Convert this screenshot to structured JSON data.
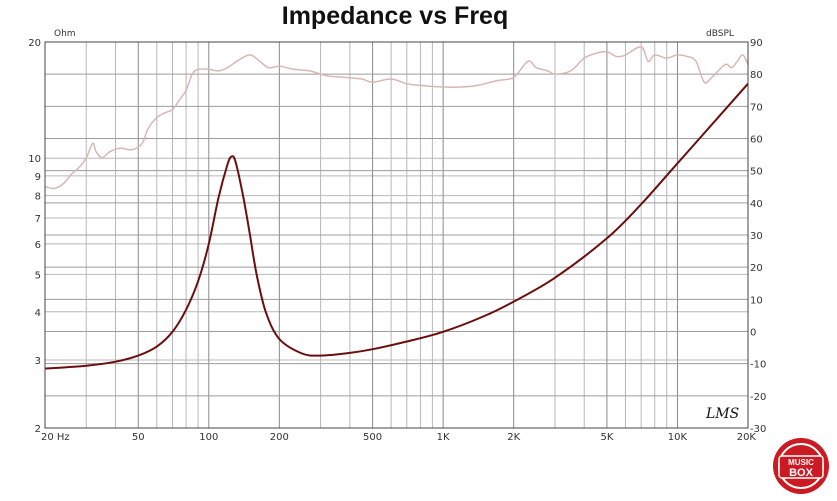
{
  "chart_data": {
    "type": "line",
    "title": "Impedance vs Freq",
    "left_unit": "Ohm",
    "right_unit": "dBSPL",
    "x_scale": "log",
    "x_range": [
      20,
      20000
    ],
    "y_left_scale": "log",
    "y_left_range": [
      2,
      20
    ],
    "y_right_range": [
      -30,
      90
    ],
    "grid": true,
    "x_ticks": [
      {
        "v": 20,
        "label": "20 Hz"
      },
      {
        "v": 50,
        "label": "50"
      },
      {
        "v": 100,
        "label": "100"
      },
      {
        "v": 200,
        "label": "200"
      },
      {
        "v": 500,
        "label": "500"
      },
      {
        "v": 1000,
        "label": "1K"
      },
      {
        "v": 2000,
        "label": "2K"
      },
      {
        "v": 5000,
        "label": "5K"
      },
      {
        "v": 10000,
        "label": "10K"
      },
      {
        "v": 20000,
        "label": "20K"
      }
    ],
    "y_left_ticks": [
      {
        "v": 2,
        "label": "2"
      },
      {
        "v": 3,
        "label": "3"
      },
      {
        "v": 4,
        "label": "4"
      },
      {
        "v": 5,
        "label": "5"
      },
      {
        "v": 6,
        "label": "6"
      },
      {
        "v": 7,
        "label": "7"
      },
      {
        "v": 8,
        "label": "8"
      },
      {
        "v": 9,
        "label": "9"
      },
      {
        "v": 10,
        "label": "10"
      },
      {
        "v": 20,
        "label": "20"
      }
    ],
    "y_right_ticks": [
      {
        "v": 90,
        "label": "90"
      },
      {
        "v": 80,
        "label": "80"
      },
      {
        "v": 70,
        "label": "70"
      },
      {
        "v": 60,
        "label": "60"
      },
      {
        "v": 50,
        "label": "50"
      },
      {
        "v": 40,
        "label": "40"
      },
      {
        "v": 30,
        "label": "30"
      },
      {
        "v": 20,
        "label": "20"
      },
      {
        "v": 10,
        "label": "10"
      },
      {
        "v": 0,
        "label": "0"
      },
      {
        "v": -10,
        "label": "-10"
      },
      {
        "v": -20,
        "label": "-20"
      },
      {
        "v": -30,
        "label": "-30"
      }
    ],
    "series": [
      {
        "axis": "left",
        "color": "#6b0e0e",
        "points": [
          [
            20,
            2.85
          ],
          [
            30,
            2.9
          ],
          [
            40,
            2.97
          ],
          [
            50,
            3.08
          ],
          [
            60,
            3.25
          ],
          [
            70,
            3.55
          ],
          [
            80,
            4.05
          ],
          [
            90,
            4.8
          ],
          [
            100,
            6.0
          ],
          [
            110,
            7.9
          ],
          [
            120,
            9.6
          ],
          [
            125,
            10.1
          ],
          [
            130,
            9.8
          ],
          [
            140,
            8.0
          ],
          [
            150,
            6.3
          ],
          [
            160,
            5.0
          ],
          [
            175,
            4.0
          ],
          [
            200,
            3.4
          ],
          [
            250,
            3.12
          ],
          [
            300,
            3.08
          ],
          [
            400,
            3.13
          ],
          [
            500,
            3.2
          ],
          [
            700,
            3.35
          ],
          [
            1000,
            3.55
          ],
          [
            1500,
            3.9
          ],
          [
            2000,
            4.25
          ],
          [
            3000,
            4.9
          ],
          [
            5000,
            6.2
          ],
          [
            7000,
            7.6
          ],
          [
            10000,
            9.7
          ],
          [
            15000,
            12.8
          ],
          [
            20000,
            15.6
          ]
        ]
      },
      {
        "axis": "right",
        "color": "#d9b6b6",
        "points": [
          [
            20,
            45
          ],
          [
            22,
            44.5
          ],
          [
            24,
            46
          ],
          [
            26,
            49
          ],
          [
            28,
            51
          ],
          [
            30,
            54
          ],
          [
            32,
            58.5
          ],
          [
            33,
            56
          ],
          [
            35,
            54
          ],
          [
            38,
            56
          ],
          [
            42,
            57
          ],
          [
            47,
            56.5
          ],
          [
            52,
            58.5
          ],
          [
            55,
            63
          ],
          [
            60,
            66.5
          ],
          [
            65,
            68
          ],
          [
            70,
            69
          ],
          [
            75,
            72
          ],
          [
            80,
            75
          ],
          [
            85,
            80
          ],
          [
            90,
            81.5
          ],
          [
            100,
            81.5
          ],
          [
            110,
            81
          ],
          [
            120,
            82
          ],
          [
            135,
            84.5
          ],
          [
            150,
            86
          ],
          [
            165,
            84
          ],
          [
            180,
            82
          ],
          [
            200,
            82.5
          ],
          [
            230,
            81.5
          ],
          [
            270,
            81
          ],
          [
            320,
            79.5
          ],
          [
            380,
            79
          ],
          [
            450,
            78.5
          ],
          [
            500,
            77.5
          ],
          [
            600,
            78.5
          ],
          [
            700,
            77
          ],
          [
            800,
            76.5
          ],
          [
            1000,
            76
          ],
          [
            1200,
            76
          ],
          [
            1400,
            76.5
          ],
          [
            1700,
            78
          ],
          [
            2000,
            79
          ],
          [
            2300,
            84
          ],
          [
            2500,
            82
          ],
          [
            2800,
            81
          ],
          [
            3000,
            80
          ],
          [
            3500,
            81
          ],
          [
            4000,
            85
          ],
          [
            4500,
            86.5
          ],
          [
            5000,
            87
          ],
          [
            5500,
            85.5
          ],
          [
            6000,
            86
          ],
          [
            7000,
            88.5
          ],
          [
            7500,
            84
          ],
          [
            8000,
            86
          ],
          [
            9000,
            85
          ],
          [
            10000,
            86
          ],
          [
            11000,
            85.5
          ],
          [
            12000,
            84
          ],
          [
            13000,
            77.5
          ],
          [
            14000,
            79
          ],
          [
            16000,
            83
          ],
          [
            17000,
            82
          ],
          [
            18000,
            84
          ],
          [
            19000,
            86
          ],
          [
            20000,
            83
          ]
        ]
      }
    ]
  },
  "watermark": "LMS",
  "logo": {
    "line1": "MUSIC",
    "line2": "BOX"
  }
}
